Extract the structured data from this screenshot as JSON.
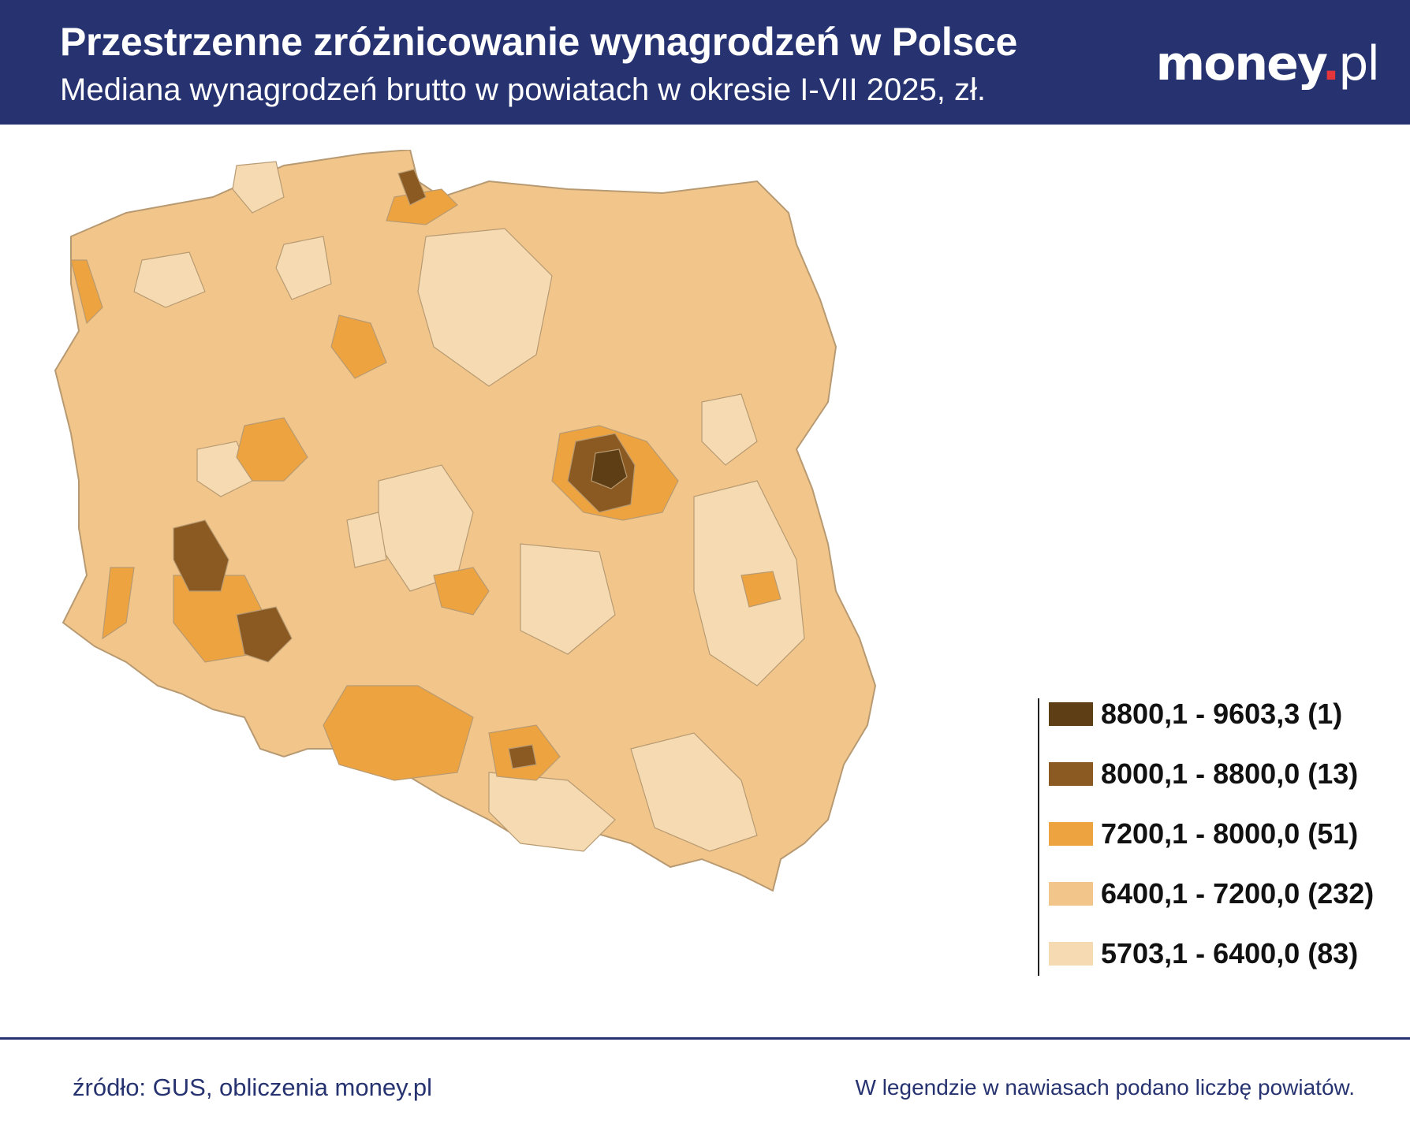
{
  "header": {
    "title": "Przestrzenne zróżnicowanie wynagrodzeń w Polsce",
    "subtitle": "Mediana wynagrodzeń brutto w powiatach w okresie I-VII 2025, zł.",
    "logo_main": "money",
    "logo_dot": ".",
    "logo_suffix": "pl"
  },
  "legend": {
    "items": [
      {
        "label": "8800,1 - 9603,3 (1)",
        "color": "#5e3e14"
      },
      {
        "label": "8000,1 - 8800,0 (13)",
        "color": "#8b5a22"
      },
      {
        "label": "7200,1 - 8000,0 (51)",
        "color": "#eda33f"
      },
      {
        "label": "6400,1 - 7200,0 (232)",
        "color": "#f2c68a"
      },
      {
        "label": "5703,1 - 6400,0 (83)",
        "color": "#f6dbb2"
      }
    ]
  },
  "footer": {
    "source": "źródło: GUS, obliczenia money.pl",
    "note": "W legendzie w nawiasach podano liczbę powiatów."
  },
  "colors": {
    "header_bg": "#263370",
    "border": "#b89a72"
  }
}
